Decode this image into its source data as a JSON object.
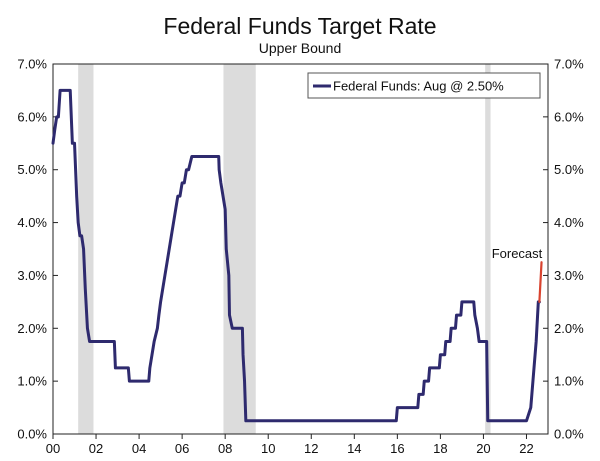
{
  "chart_data": {
    "type": "line",
    "title": "Federal Funds Target Rate",
    "subtitle": "Upper Bound",
    "xlabel": "",
    "ylabel": "",
    "xlim": [
      2000,
      2023
    ],
    "ylim": [
      0,
      7
    ],
    "y_ticks": [
      0,
      1,
      2,
      3,
      4,
      5,
      6,
      7
    ],
    "y_tick_labels": [
      "0.0%",
      "1.0%",
      "2.0%",
      "3.0%",
      "4.0%",
      "5.0%",
      "6.0%",
      "7.0%"
    ],
    "x_ticks": [
      2000,
      2002,
      2004,
      2006,
      2008,
      2010,
      2012,
      2014,
      2016,
      2018,
      2020,
      2022
    ],
    "x_tick_labels": [
      "00",
      "02",
      "04",
      "06",
      "08",
      "10",
      "12",
      "14",
      "16",
      "18",
      "20",
      "22"
    ],
    "recessions": [
      [
        2001.17,
        2001.88
      ],
      [
        2007.92,
        2009.42
      ],
      [
        2020.08,
        2020.33
      ]
    ],
    "legend": {
      "label": "Federal Funds: Aug @ 2.50%",
      "position": "top-right"
    },
    "annotation": "Forecast",
    "colors": {
      "series": "#2e2a6e",
      "forecast": "#d9432f",
      "recession": "#dcdcdc"
    },
    "series": [
      {
        "name": "Federal Funds",
        "x": [
          2000.0,
          2000.08,
          2000.17,
          2000.25,
          2000.33,
          2000.42,
          2000.8,
          2000.9,
          2001.0,
          2001.05,
          2001.1,
          2001.17,
          2001.25,
          2001.33,
          2001.42,
          2001.5,
          2001.6,
          2001.7,
          2001.75,
          2001.83,
          2001.9,
          2001.95,
          2002.85,
          2002.9,
          2003.5,
          2003.55,
          2004.45,
          2004.5,
          2004.6,
          2004.7,
          2004.85,
          2004.92,
          2005.0,
          2005.1,
          2005.2,
          2005.3,
          2005.4,
          2005.5,
          2005.6,
          2005.7,
          2005.8,
          2005.9,
          2006.0,
          2006.1,
          2006.2,
          2006.3,
          2006.45,
          2006.5,
          2007.7,
          2007.72,
          2007.8,
          2007.9,
          2008.0,
          2008.05,
          2008.17,
          2008.2,
          2008.33,
          2008.4,
          2008.8,
          2008.83,
          2008.9,
          2008.96,
          2015.95,
          2016.0,
          2016.95,
          2017.0,
          2017.2,
          2017.25,
          2017.45,
          2017.5,
          2017.95,
          2018.0,
          2018.2,
          2018.25,
          2018.45,
          2018.5,
          2018.7,
          2018.75,
          2018.95,
          2019.0,
          2019.55,
          2019.6,
          2019.72,
          2019.8,
          2020.15,
          2020.2,
          2021.0,
          2022.0,
          2022.2,
          2022.3,
          2022.45,
          2022.55,
          2022.6
        ],
        "values": [
          5.5,
          5.75,
          6.0,
          6.0,
          6.5,
          6.5,
          6.5,
          5.5,
          5.5,
          5.0,
          4.5,
          4.0,
          3.75,
          3.75,
          3.5,
          2.75,
          2.0,
          1.75,
          1.75,
          1.75,
          1.75,
          1.75,
          1.75,
          1.25,
          1.25,
          1.0,
          1.0,
          1.25,
          1.5,
          1.75,
          2.0,
          2.25,
          2.5,
          2.75,
          3.0,
          3.25,
          3.5,
          3.75,
          4.0,
          4.25,
          4.5,
          4.5,
          4.75,
          4.75,
          5.0,
          5.0,
          5.25,
          5.25,
          5.25,
          5.0,
          4.75,
          4.5,
          4.25,
          3.5,
          3.0,
          2.25,
          2.0,
          2.0,
          2.0,
          1.5,
          1.0,
          0.25,
          0.25,
          0.5,
          0.5,
          0.75,
          0.75,
          1.0,
          1.0,
          1.25,
          1.25,
          1.5,
          1.5,
          1.75,
          1.75,
          2.0,
          2.0,
          2.25,
          2.25,
          2.5,
          2.5,
          2.25,
          2.0,
          1.75,
          1.75,
          0.25,
          0.25,
          0.25,
          0.5,
          1.0,
          1.75,
          2.5,
          2.5
        ]
      },
      {
        "name": "Forecast",
        "x": [
          2022.6,
          2022.7
        ],
        "values": [
          2.5,
          3.25
        ]
      }
    ]
  }
}
